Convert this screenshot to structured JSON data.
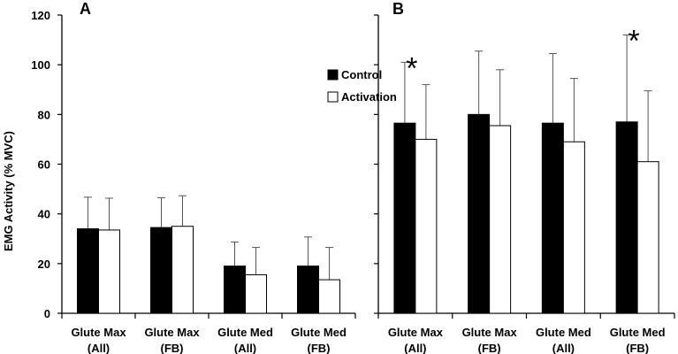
{
  "chart_data": {
    "type": "bar",
    "ylabel": "EMG Activity (% MVC)",
    "ylim": [
      0,
      120
    ],
    "yticks": [
      0,
      20,
      40,
      60,
      80,
      100,
      120
    ],
    "legend": {
      "position": "upper-left-of-panel-B",
      "entries": [
        {
          "name": "Control",
          "color": "#000000"
        },
        {
          "name": "Activation",
          "color": "#ffffff"
        }
      ]
    },
    "panels": [
      {
        "label": "A",
        "categories": [
          [
            "Glute Max",
            "(All)"
          ],
          [
            "Glute Max",
            "(FB)"
          ],
          [
            "Glute Med",
            "(All)"
          ],
          [
            "Glute Med",
            "(FB)"
          ]
        ],
        "series": [
          {
            "name": "Control",
            "values": [
              34,
              34.5,
              19,
              19
            ],
            "errors": [
              12.7,
              12,
              9.7,
              11.7
            ]
          },
          {
            "name": "Activation",
            "values": [
              33.5,
              35,
              15.5,
              13.5
            ],
            "errors": [
              12.8,
              12.3,
              11,
              13
            ]
          }
        ],
        "significance": []
      },
      {
        "label": "B",
        "categories": [
          [
            "Glute Max",
            "(All)"
          ],
          [
            "Glute Max",
            "(FB)"
          ],
          [
            "Glute Med",
            "(All)"
          ],
          [
            "Glute Med",
            "(FB)"
          ]
        ],
        "series": [
          {
            "name": "Control",
            "values": [
              76.5,
              80,
              76.5,
              77
            ],
            "errors": [
              24.5,
              25.5,
              28,
              35
            ]
          },
          {
            "name": "Activation",
            "values": [
              70,
              75.5,
              69,
              61
            ],
            "errors": [
              22,
              22.5,
              25.5,
              28.5
            ]
          }
        ],
        "significance": [
          {
            "category_index": 0,
            "symbol": "*"
          },
          {
            "category_index": 3,
            "symbol": "*"
          }
        ]
      }
    ]
  }
}
